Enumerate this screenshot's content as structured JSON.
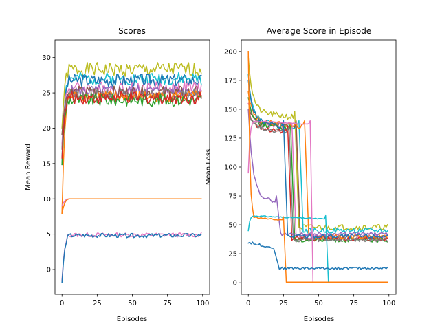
{
  "chart_data": [
    {
      "type": "line",
      "title": "Scores",
      "xlabel": "Episodes",
      "ylabel": "Mean Reward",
      "xlim": [
        -5,
        105
      ],
      "ylim": [
        -3.5,
        32.5
      ],
      "xticks": [
        0,
        25,
        50,
        75,
        100
      ],
      "yticks": [
        0,
        5,
        10,
        15,
        20,
        25,
        30
      ],
      "grid": false,
      "legend": "none",
      "series_note": "",
      "series": [
        {
          "color": "#bcbd22",
          "shape": {
            "type": "rise",
            "start": 20,
            "level": 28.3,
            "noise": 1.0,
            "seed": 1
          }
        },
        {
          "color": "#17becf",
          "shape": {
            "type": "rise",
            "start": 16,
            "level": 27.0,
            "noise": 0.9,
            "seed": 2
          }
        },
        {
          "color": "#1f77b4",
          "shape": {
            "type": "rise",
            "start": 15,
            "level": 26.8,
            "noise": 0.9,
            "seed": 3
          }
        },
        {
          "color": "#e377c2",
          "shape": {
            "type": "rise",
            "start": 18,
            "level": 25.7,
            "noise": 0.9,
            "seed": 4
          }
        },
        {
          "color": "#9467bd",
          "shape": {
            "type": "rise",
            "start": 17,
            "level": 25.3,
            "noise": 0.8,
            "seed": 5
          }
        },
        {
          "color": "#8c564b",
          "shape": {
            "type": "rise",
            "start": 19,
            "level": 25.0,
            "noise": 1.0,
            "seed": 6
          }
        },
        {
          "color": "#7f7f7f",
          "shape": {
            "type": "rise",
            "start": 17,
            "level": 24.8,
            "noise": 0.8,
            "seed": 7
          }
        },
        {
          "color": "#ff7f0e",
          "shape": {
            "type": "rise",
            "start": 8,
            "level": 24.5,
            "noise": 0.8,
            "seed": 8
          }
        },
        {
          "color": "#2ca02c",
          "shape": {
            "type": "rise",
            "start": 15,
            "level": 24.0,
            "noise": 0.9,
            "seed": 9
          }
        },
        {
          "color": "#d62728",
          "shape": {
            "type": "rise",
            "start": 16,
            "level": 24.3,
            "noise": 0.9,
            "seed": 10
          }
        },
        {
          "color": "#e377c2",
          "shape": {
            "type": "rise",
            "start": 9,
            "level": 10.0,
            "noise": 0.0,
            "seed": 11
          }
        },
        {
          "color": "#ff7f0e",
          "shape": {
            "type": "rise",
            "start": 8,
            "level": 10.0,
            "noise": 0.0,
            "seed": 12
          }
        },
        {
          "color": "#e377c2",
          "shape": {
            "type": "rise",
            "start": -1.5,
            "level": 4.9,
            "noise": 0.3,
            "seed": 13
          }
        },
        {
          "color": "#1f77b4",
          "shape": {
            "type": "rise",
            "start": -1.8,
            "level": 4.8,
            "noise": 0.3,
            "seed": 14
          }
        }
      ]
    },
    {
      "type": "line",
      "title": "Average Score in Episode",
      "xlabel": "Episodes",
      "ylabel": "Mean Loss",
      "xlim": [
        -5,
        105
      ],
      "ylim": [
        -10,
        210
      ],
      "xticks": [
        0,
        25,
        50,
        75,
        100
      ],
      "yticks": [
        0,
        25,
        50,
        75,
        100,
        125,
        150,
        175,
        200
      ],
      "grid": false,
      "legend": "none",
      "series": [
        {
          "color": "#bcbd22",
          "shape": {
            "type": "drop",
            "start": 195,
            "plateau": 148,
            "drop_at": 33,
            "end": 48,
            "noise": 2.5,
            "seed": 21
          }
        },
        {
          "color": "#17becf",
          "shape": {
            "type": "drop",
            "start": 180,
            "plateau": 140,
            "drop_at": 36,
            "end": 45,
            "noise": 2.2,
            "seed": 22
          }
        },
        {
          "color": "#e377c2",
          "shape": {
            "type": "drop",
            "start": 155,
            "plateau": 138,
            "drop_at": 31,
            "end": 40,
            "noise": 2.0,
            "seed": 23
          }
        },
        {
          "color": "#8c564b",
          "shape": {
            "type": "drop",
            "start": 150,
            "plateau": 140,
            "drop_at": 34,
            "end": 38,
            "noise": 2.0,
            "seed": 24
          }
        },
        {
          "color": "#2ca02c",
          "shape": {
            "type": "drop",
            "start": 160,
            "plateau": 138,
            "drop_at": 30,
            "end": 37,
            "noise": 2.0,
            "seed": 25
          }
        },
        {
          "color": "#d62728",
          "shape": {
            "type": "drop",
            "start": 150,
            "plateau": 135,
            "drop_at": 28,
            "end": 38,
            "noise": 2.0,
            "seed": 26
          }
        },
        {
          "color": "#7f7f7f",
          "shape": {
            "type": "drop",
            "start": 150,
            "plateau": 135,
            "drop_at": 29,
            "end": 37,
            "noise": 2.0,
            "seed": 27
          }
        },
        {
          "color": "#ff7f0e",
          "shape": {
            "type": "drop",
            "start": 165,
            "plateau": 140,
            "drop_at": 40,
            "end": 40,
            "noise": 2.2,
            "seed": 28
          }
        },
        {
          "color": "#9467bd",
          "shape": {
            "type": "drop",
            "start": 150,
            "plateau": 75,
            "drop_at": 20,
            "end": 42,
            "noise": 1.5,
            "seed": 29
          }
        },
        {
          "color": "#1f77b4",
          "shape": {
            "type": "drop",
            "start": 175,
            "plateau": 140,
            "drop_at": 25,
            "end": 40,
            "noise": 2.0,
            "seed": 30
          }
        },
        {
          "color": "#17becf",
          "shape": {
            "type": "drop2",
            "start": 45,
            "plateau": 58,
            "drop_at": 55,
            "end": 0.5,
            "seed": 31
          }
        },
        {
          "color": "#e377c2",
          "shape": {
            "type": "drop2",
            "start": 95,
            "plateau": 140,
            "drop_at": 44,
            "end": 0.5,
            "seed": 32
          }
        },
        {
          "color": "#ff7f0e",
          "shape": {
            "type": "drop2",
            "start": 200,
            "plateau": 57,
            "drop_at": 25,
            "end": 0.5,
            "seed": 33
          }
        },
        {
          "color": "#1f77b4",
          "shape": {
            "type": "low",
            "start": 35,
            "plateau": 30,
            "drop_at": 18,
            "end": 12.5,
            "noise": 1.0,
            "seed": 34
          }
        }
      ]
    }
  ]
}
